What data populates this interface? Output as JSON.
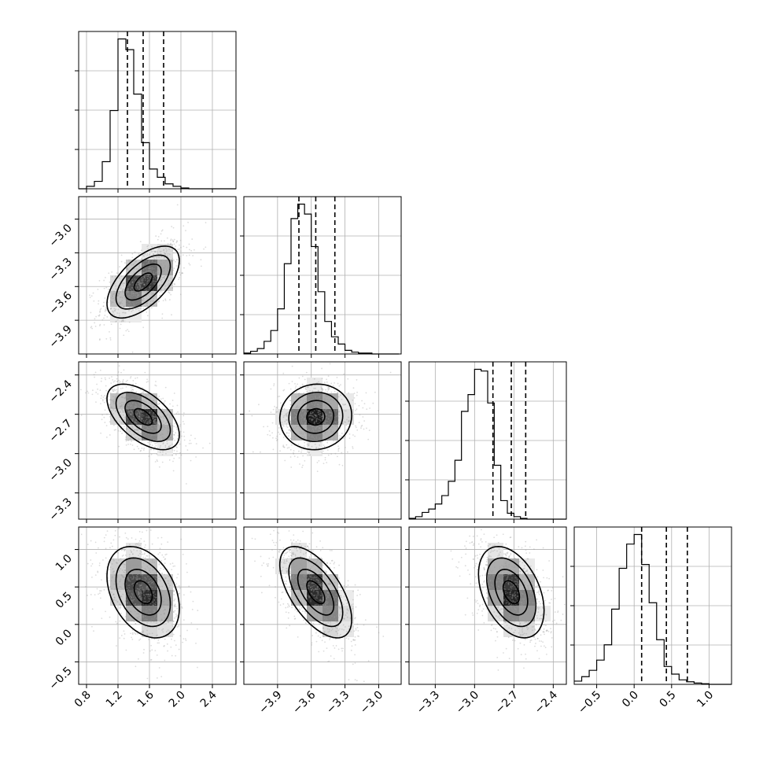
{
  "chart_data": {
    "type": "corner",
    "parameters": [
      {
        "range": [
          0.7,
          2.7
        ],
        "ticks": [
          0.8,
          1.2,
          1.6,
          2.0,
          2.4
        ],
        "tick_labels": [
          "0.8",
          "1.2",
          "1.6",
          "2.0",
          "2.4"
        ],
        "quantiles": [
          1.32,
          1.52,
          1.78
        ],
        "hist_edges_start": 0.7,
        "hist_bin_width": 0.1,
        "hist_counts": [
          0,
          3,
          9,
          33,
          95,
          182,
          169,
          115,
          56,
          24,
          14,
          6,
          3,
          1,
          0,
          0,
          0,
          0,
          0,
          0
        ]
      },
      {
        "range": [
          -4.2,
          -2.8
        ],
        "ticks": [
          -3.9,
          -3.6,
          -3.3,
          -3.0
        ],
        "tick_labels": [
          "−3.9",
          "−3.6",
          "−3.3",
          "−3.0"
        ],
        "quantiles": [
          -3.71,
          -3.56,
          -3.39
        ],
        "hist_edges_start": -4.2,
        "hist_bin_width": 0.06,
        "hist_counts": [
          1,
          3,
          6,
          14,
          26,
          50,
          100,
          150,
          166,
          155,
          119,
          69,
          36,
          19,
          11,
          4,
          2,
          1,
          1,
          0,
          0,
          0,
          0
        ]
      },
      {
        "range": [
          -3.5,
          -2.3
        ],
        "ticks": [
          -3.3,
          -3.0,
          -2.7,
          -2.4
        ],
        "tick_labels": [
          "−3.3",
          "−3.0",
          "−2.7",
          "−2.4"
        ],
        "quantiles": [
          -2.86,
          -2.72,
          -2.61
        ],
        "hist_edges_start": -3.5,
        "hist_bin_width": 0.05,
        "hist_counts": [
          1,
          3,
          8,
          12,
          18,
          28,
          45,
          70,
          128,
          148,
          178,
          176,
          138,
          64,
          22,
          7,
          3,
          1,
          0,
          0,
          0,
          0,
          0,
          0
        ]
      },
      {
        "range": [
          -0.8,
          1.3
        ],
        "ticks": [
          -0.5,
          0.0,
          0.5,
          1.0
        ],
        "tick_labels": [
          "−0.5",
          "0.0",
          "0.5",
          "1.0"
        ],
        "quantiles": [
          0.1,
          0.43,
          0.71
        ],
        "hist_edges_start": -0.8,
        "hist_bin_width": 0.1,
        "hist_counts": [
          5,
          12,
          22,
          38,
          62,
          118,
          182,
          220,
          235,
          188,
          128,
          70,
          28,
          16,
          7,
          4,
          2,
          1,
          0,
          0,
          0
        ]
      }
    ],
    "correlations": {
      "1,0": 0.6,
      "2,0": -0.55,
      "2,1": 0.05,
      "3,0": -0.35,
      "3,1": -0.6,
      "3,2": -0.4
    },
    "grid": true,
    "legend": "none"
  },
  "colors": {
    "scatter": "#9a9a9a",
    "contour": "#000000",
    "density_dark": "#111111",
    "grid": "#b0b0b0"
  }
}
